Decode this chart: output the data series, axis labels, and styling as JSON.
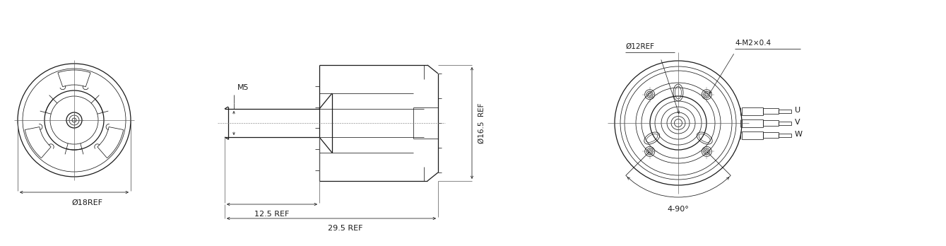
{
  "bg_color": "#ffffff",
  "line_color": "#1a1a1a",
  "fig_width": 13.39,
  "fig_height": 3.48,
  "dpi": 100,
  "annotations": {
    "phi18ref": "Ø18REF",
    "m5": "M5",
    "phi12ref": "Ø12REF",
    "phi165ref": "Ø16.5  REF",
    "125ref": "12.5 REF",
    "295ref": "29.5 REF",
    "4m2x04": "4-M2×0.4",
    "4_90": "4-90°",
    "u": "U",
    "v": "V",
    "w": "W"
  }
}
